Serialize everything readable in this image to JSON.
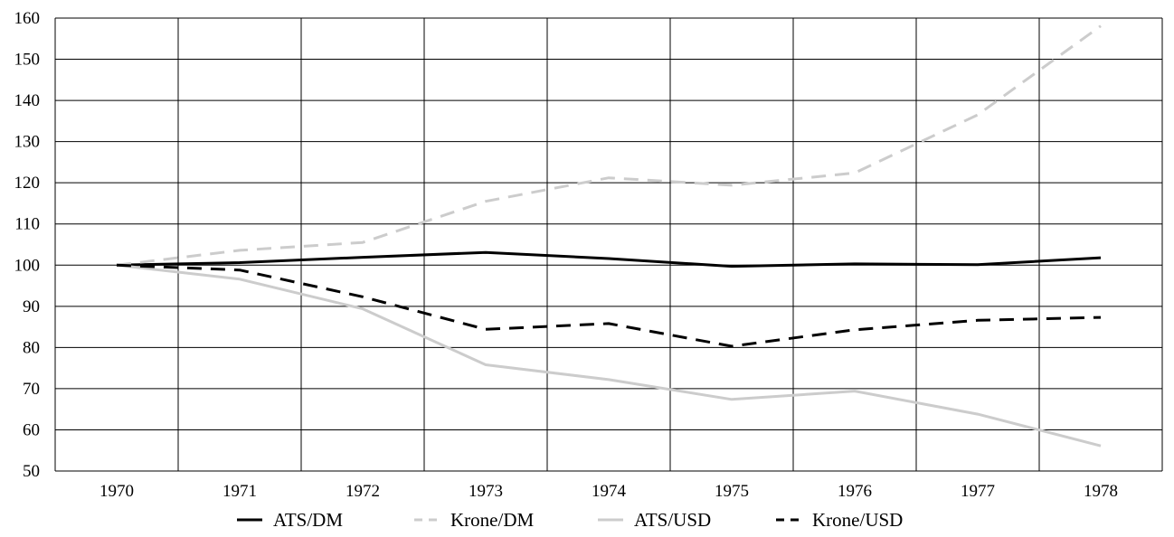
{
  "chart_data": {
    "type": "line",
    "title": "",
    "xlabel": "",
    "ylabel": "",
    "categories": [
      "1970",
      "1971",
      "1972",
      "1973",
      "1974",
      "1975",
      "1976",
      "1977",
      "1978"
    ],
    "ylim": [
      50,
      160
    ],
    "yticks": [
      "50",
      "60",
      "70",
      "80",
      "90",
      "100",
      "110",
      "120",
      "130",
      "140",
      "150",
      "160"
    ],
    "grid": true,
    "legend_position": "bottom",
    "series": [
      {
        "name": "ATS/DM",
        "color": "#000000",
        "dash": "solid",
        "values": [
          100,
          100.6,
          101.9,
          103.1,
          101.6,
          99.7,
          100.3,
          100.1,
          101.8
        ]
      },
      {
        "name": "Krone/DM",
        "color": "#cccccc",
        "dash": "dashed",
        "values": [
          100,
          103.6,
          105.5,
          115.5,
          121.2,
          119.4,
          122.4,
          136.5,
          158.1
        ]
      },
      {
        "name": "ATS/USD",
        "color": "#cccccc",
        "dash": "solid",
        "values": [
          100,
          96.6,
          89.4,
          75.8,
          72.2,
          67.4,
          69.4,
          63.8,
          56.1
        ]
      },
      {
        "name": "Krone/USD",
        "color": "#000000",
        "dash": "dashed",
        "values": [
          100,
          98.8,
          92.3,
          84.4,
          85.8,
          80.3,
          84.3,
          86.6,
          87.3
        ]
      }
    ]
  }
}
